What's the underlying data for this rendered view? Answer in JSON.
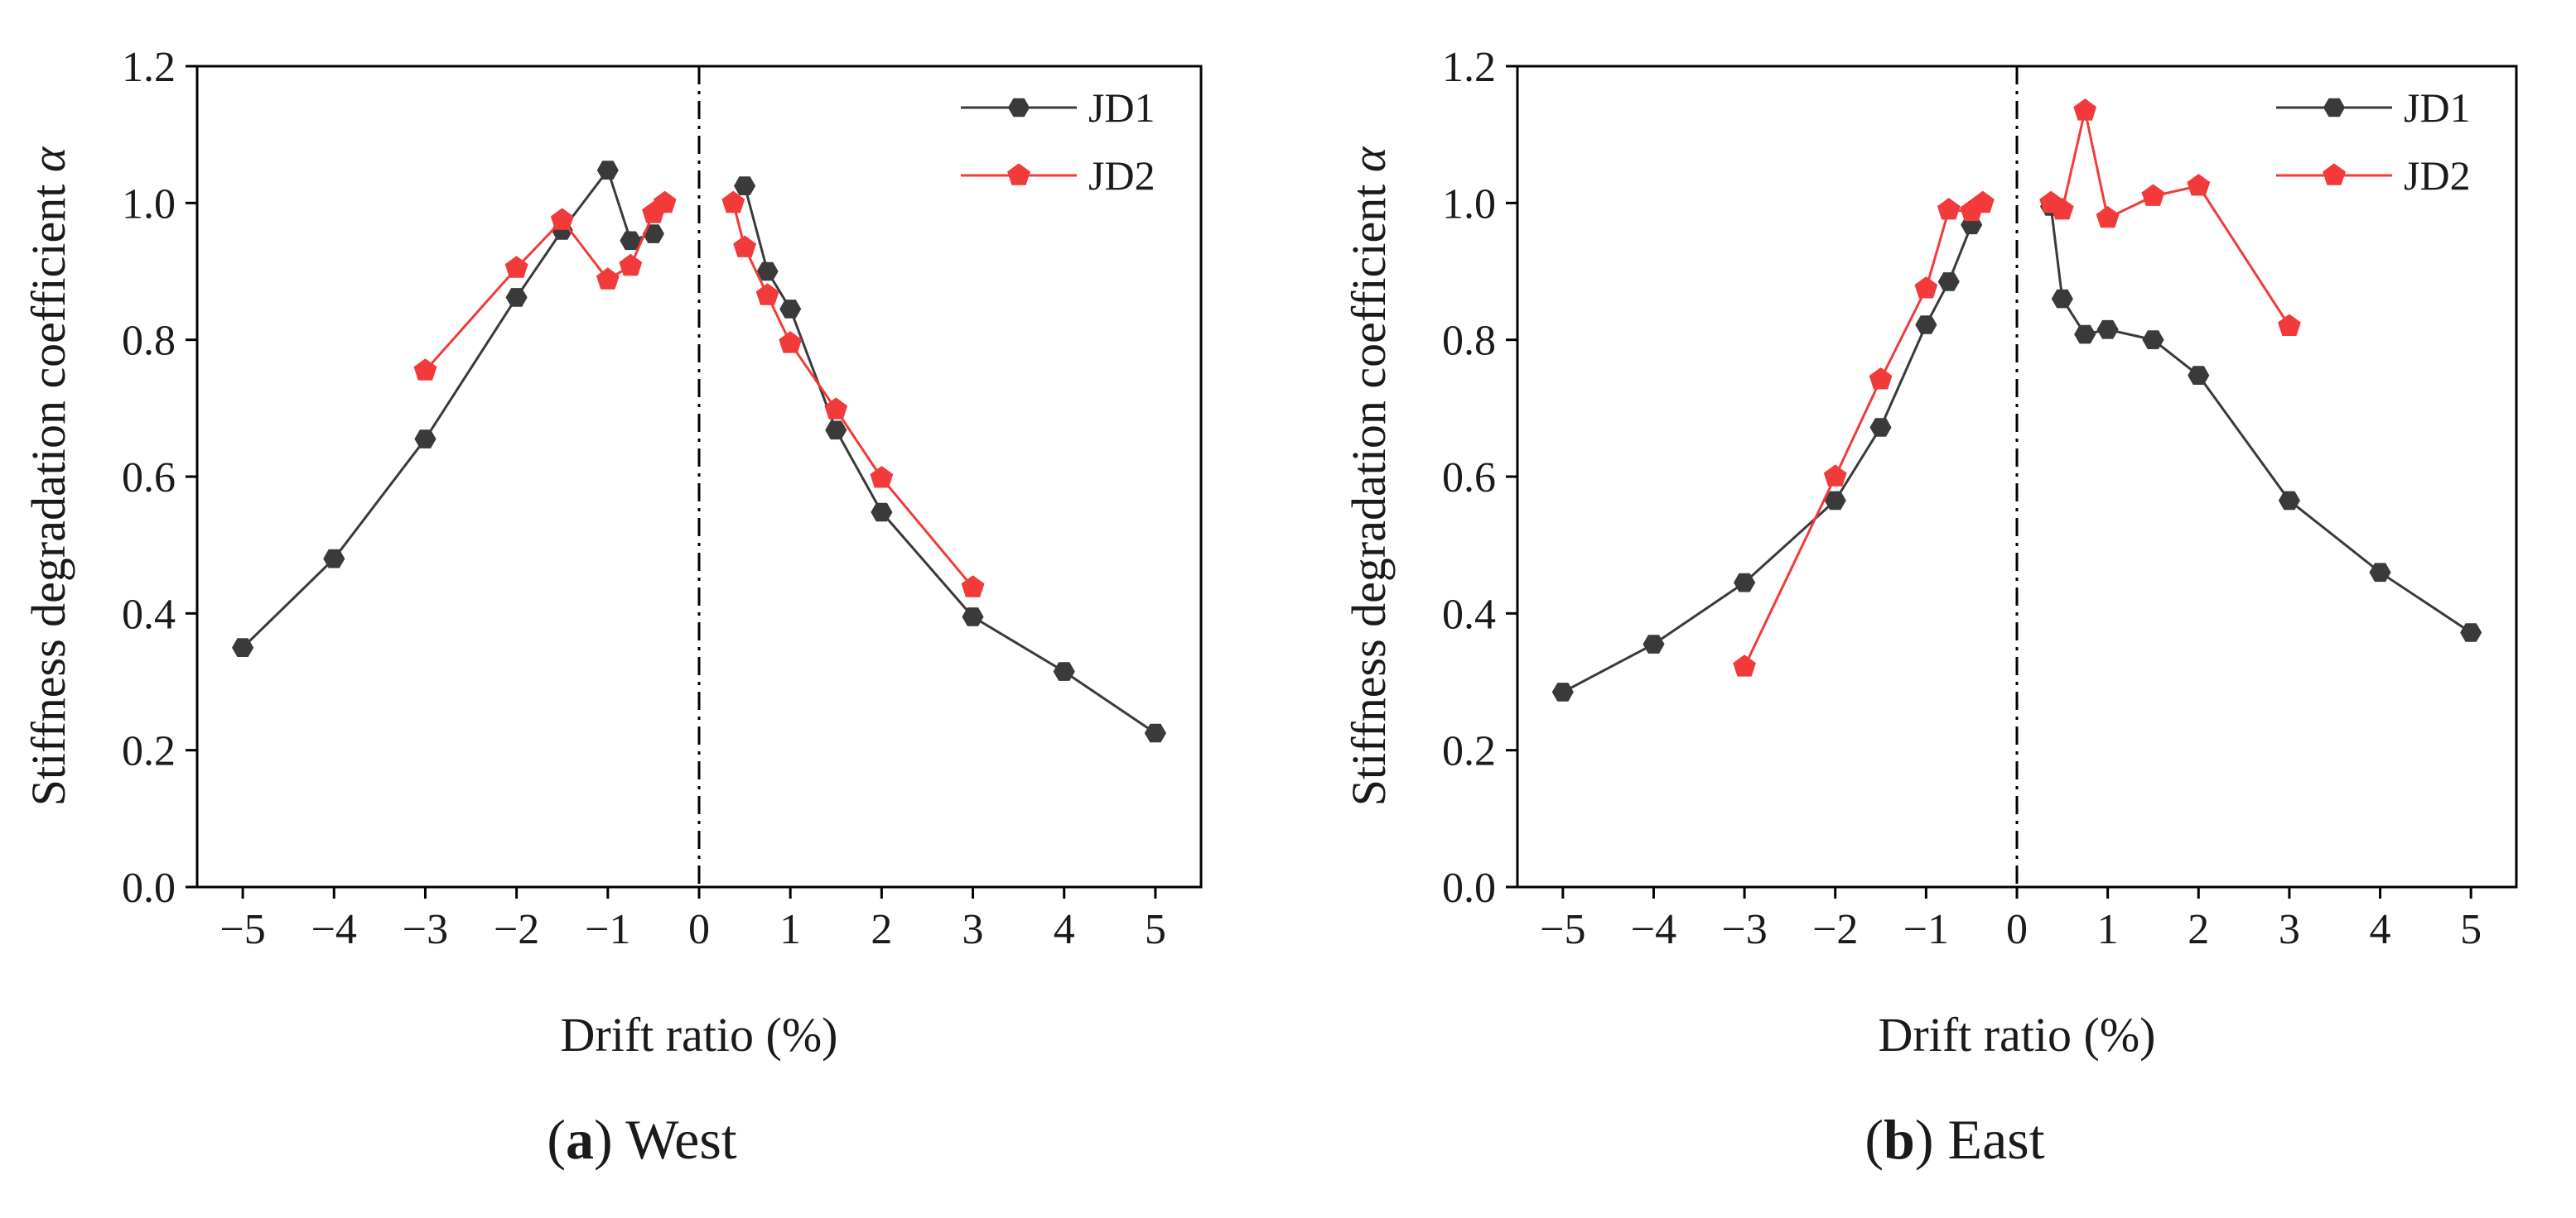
{
  "figure": {
    "panels": [
      {
        "caption_letter": "a",
        "caption_text": " West"
      },
      {
        "caption_letter": "b",
        "caption_text": " East"
      }
    ]
  },
  "chart_data": [
    {
      "type": "line",
      "title": "West",
      "xlabel": "Drift ratio (%)",
      "ylabel_text": "Stiffness degradation coefficient ",
      "ylabel_symbol": "α",
      "xlim": [
        -5.5,
        5.5
      ],
      "ylim": [
        0.0,
        1.2
      ],
      "xticks": [
        -5,
        -4,
        -3,
        -2,
        -1,
        0,
        1,
        2,
        3,
        4,
        5
      ],
      "xtick_labels": [
        "−5",
        "−4",
        "−3",
        "−2",
        "−1",
        "0",
        "1",
        "2",
        "3",
        "4",
        "5"
      ],
      "yticks": [
        0.0,
        0.2,
        0.4,
        0.6,
        0.8,
        1.0,
        1.2
      ],
      "ytick_labels": [
        "0.0",
        "0.2",
        "0.4",
        "0.6",
        "0.8",
        "1.0",
        "1.2"
      ],
      "zero_line": {
        "x": 0,
        "style": "dash-dot"
      },
      "legend_position": "top-right",
      "series": [
        {
          "name": "JD1",
          "color": "#3a3a3a",
          "marker": "hexagon",
          "negative": {
            "x": [
              -5,
              -4,
              -3,
              -2,
              -1.5,
              -1,
              -0.75,
              -0.5
            ],
            "y": [
              0.35,
              0.48,
              0.655,
              0.862,
              0.96,
              1.048,
              0.945,
              0.955
            ]
          },
          "positive": {
            "x": [
              0.5,
              0.75,
              1,
              1.5,
              2,
              3,
              4,
              5
            ],
            "y": [
              1.025,
              0.9,
              0.845,
              0.668,
              0.548,
              0.395,
              0.315,
              0.225
            ]
          }
        },
        {
          "name": "JD2",
          "color": "#f23a3a",
          "marker": "pentagon",
          "negative": {
            "x": [
              -3,
              -2,
              -1.5,
              -1,
              -0.75,
              -0.5,
              -0.375
            ],
            "y": [
              0.755,
              0.905,
              0.975,
              0.888,
              0.908,
              0.985,
              1.0
            ]
          },
          "positive": {
            "x": [
              0.375,
              0.5,
              0.75,
              1,
              1.5,
              2,
              3
            ],
            "y": [
              1.0,
              0.935,
              0.865,
              0.795,
              0.698,
              0.598,
              0.438
            ]
          }
        }
      ]
    },
    {
      "type": "line",
      "title": "East",
      "xlabel": "Drift ratio (%)",
      "ylabel_text": "Stiffness degradation coefficient ",
      "ylabel_symbol": "α",
      "xlim": [
        -5.5,
        5.5
      ],
      "ylim": [
        0.0,
        1.2
      ],
      "xticks": [
        -5,
        -4,
        -3,
        -2,
        -1,
        0,
        1,
        2,
        3,
        4,
        5
      ],
      "xtick_labels": [
        "−5",
        "−4",
        "−3",
        "−2",
        "−1",
        "0",
        "1",
        "2",
        "3",
        "4",
        "5"
      ],
      "yticks": [
        0.0,
        0.2,
        0.4,
        0.6,
        0.8,
        1.0,
        1.2
      ],
      "ytick_labels": [
        "0.0",
        "0.2",
        "0.4",
        "0.6",
        "0.8",
        "1.0",
        "1.2"
      ],
      "zero_line": {
        "x": 0,
        "style": "dash-dot"
      },
      "legend_position": "top-right",
      "series": [
        {
          "name": "JD1",
          "color": "#3a3a3a",
          "marker": "hexagon",
          "negative": {
            "x": [
              -5,
              -4,
              -3,
              -2,
              -1.5,
              -1,
              -0.75,
              -0.5
            ],
            "y": [
              0.285,
              0.355,
              0.445,
              0.565,
              0.672,
              0.822,
              0.885,
              0.968
            ]
          },
          "positive": {
            "x": [
              0.375,
              0.5,
              0.75,
              1,
              1.5,
              2,
              3,
              4,
              5
            ],
            "y": [
              0.995,
              0.86,
              0.808,
              0.815,
              0.8,
              0.748,
              0.565,
              0.46,
              0.372
            ]
          }
        },
        {
          "name": "JD2",
          "color": "#f23a3a",
          "marker": "pentagon",
          "negative": {
            "x": [
              -3,
              -2,
              -1.5,
              -1,
              -0.75,
              -0.5,
              -0.375
            ],
            "y": [
              0.322,
              0.6,
              0.742,
              0.875,
              0.99,
              0.988,
              1.0
            ]
          },
          "positive": {
            "x": [
              0.375,
              0.5,
              0.75,
              1,
              1.5,
              2,
              3
            ],
            "y": [
              1.0,
              0.99,
              1.135,
              0.978,
              1.01,
              1.025,
              0.82
            ]
          }
        }
      ]
    }
  ]
}
